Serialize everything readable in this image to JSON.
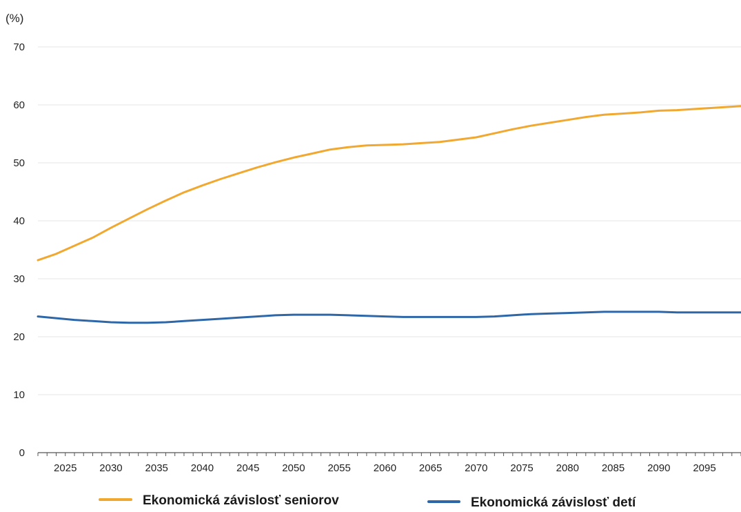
{
  "chart_data": {
    "type": "line",
    "title": "",
    "unit_label": "(%)",
    "xlabel": "",
    "ylabel": "",
    "xlim": [
      2022,
      2099
    ],
    "ylim": [
      0,
      70
    ],
    "yticks": [
      0,
      10,
      20,
      30,
      40,
      50,
      60,
      70
    ],
    "xticks": [
      2025,
      2030,
      2035,
      2040,
      2045,
      2050,
      2055,
      2060,
      2065,
      2070,
      2075,
      2080,
      2085,
      2090,
      2095
    ],
    "grid": true,
    "legend_position": "bottom",
    "series": [
      {
        "name": "Ekonomická závislosť seniorov",
        "color": "#f0a830",
        "x": [
          2022,
          2024,
          2026,
          2028,
          2030,
          2032,
          2034,
          2036,
          2038,
          2040,
          2042,
          2044,
          2046,
          2048,
          2050,
          2052,
          2054,
          2056,
          2058,
          2060,
          2062,
          2064,
          2066,
          2068,
          2070,
          2072,
          2074,
          2076,
          2078,
          2080,
          2082,
          2084,
          2086,
          2088,
          2090,
          2092,
          2094,
          2096,
          2099
        ],
        "y": [
          33.2,
          34.3,
          35.7,
          37.1,
          38.8,
          40.4,
          42.0,
          43.5,
          44.9,
          46.1,
          47.2,
          48.2,
          49.2,
          50.1,
          50.9,
          51.6,
          52.3,
          52.7,
          53.0,
          53.1,
          53.2,
          53.4,
          53.6,
          54.0,
          54.4,
          55.1,
          55.8,
          56.4,
          56.9,
          57.4,
          57.9,
          58.3,
          58.5,
          58.7,
          59.0,
          59.1,
          59.3,
          59.5,
          59.8
        ]
      },
      {
        "name": "Ekonomická závislosť detí",
        "color": "#2e67a8",
        "x": [
          2022,
          2024,
          2026,
          2028,
          2030,
          2032,
          2034,
          2036,
          2038,
          2040,
          2042,
          2044,
          2046,
          2048,
          2050,
          2052,
          2054,
          2056,
          2058,
          2060,
          2062,
          2064,
          2066,
          2068,
          2070,
          2072,
          2074,
          2076,
          2078,
          2080,
          2082,
          2084,
          2086,
          2088,
          2090,
          2092,
          2094,
          2096,
          2099
        ],
        "y": [
          23.5,
          23.2,
          22.9,
          22.7,
          22.5,
          22.4,
          22.4,
          22.5,
          22.7,
          22.9,
          23.1,
          23.3,
          23.5,
          23.7,
          23.8,
          23.8,
          23.8,
          23.7,
          23.6,
          23.5,
          23.4,
          23.4,
          23.4,
          23.4,
          23.4,
          23.5,
          23.7,
          23.9,
          24.0,
          24.1,
          24.2,
          24.3,
          24.3,
          24.3,
          24.3,
          24.2,
          24.2,
          24.2,
          24.2
        ]
      }
    ]
  }
}
